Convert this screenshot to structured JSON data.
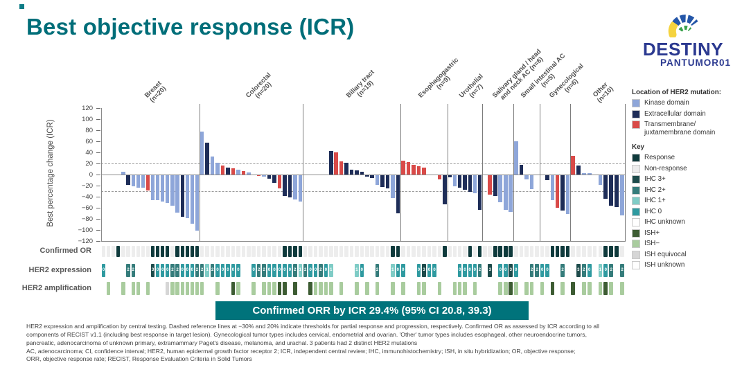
{
  "page": {
    "title": "Best objective response (ICR)",
    "logo": {
      "word": "DESTINY",
      "sub": "PANTUMOR01"
    },
    "banner_text": "Confirmed ORR by ICR 29.4% (95% CI 20.8, 39.3)",
    "row_labels": {
      "confirmed_or": "Confirmed OR",
      "her2_expression": "HER2 expression",
      "her2_amplification": "HER2 amplification"
    },
    "footnotes": [
      "HER2 expression and amplification by central testing. Dashed reference lines at −30% and 20% indicate thresholds for partial response and progression, respectively. Confirmed OR as assessed by ICR according to all",
      "components of RECIST v1.1 (including best response in target lesion). Gynecological tumor types includes cervical, endometrial and ovarian. 'Other' tumor types includes esophageal, other neuroendocrine tumors,",
      "pancreatic, adenocarcinoma of unknown primary, extramammary Paget's disease, melanoma, and urachal. 3 patients had 2 distinct HER2 mutations",
      "AC, adenocarcinoma; CI, confidence interval; HER2, human epidermal growth factor receptor 2; ICR, independent central review; IHC, immunohistochemistry; ISH, in situ hybridization; OR, objective response;",
      "ORR, objective response rate; RECIST, Response Evaluation Criteria in Solid Tumors"
    ]
  },
  "colors": {
    "title_teal": "#006e79",
    "banner_teal": "#00737b",
    "logo_navy": "#2b3990",
    "mutation": {
      "k": "#8ea6d9",
      "e": "#1e2d58",
      "t": "#d94a48"
    },
    "response": "#0f3a3c",
    "non_response": "#ededed",
    "ihc": {
      "3": "#1d4b4b",
      "2": "#357c7b",
      "1": "#7fccc6",
      "0": "#2f9aa0",
      "unknown": "#ffffff"
    },
    "ish": {
      "+": "#3d5c33",
      "-": "#a9cc9e",
      "eq": "#d6d6d6",
      "unknown": "#ffffff"
    }
  },
  "mutation_legend": {
    "title": "Location of HER2 mutation:",
    "items": [
      {
        "label": "Kinase domain",
        "key": "k"
      },
      {
        "label": "Extracellular domain",
        "key": "e"
      },
      {
        "label": "Transmembrane/\njuxtamembrane domain",
        "key": "t"
      }
    ]
  },
  "key_legend": {
    "title": "Key",
    "items": [
      {
        "label": "Response",
        "color": "#0f3a3c"
      },
      {
        "label": "Non-response",
        "color": "#ededed"
      },
      {
        "label": "IHC 3+",
        "color": "#1d4b4b"
      },
      {
        "label": "IHC 2+",
        "color": "#357c7b"
      },
      {
        "label": "IHC 1+",
        "color": "#7fccc6"
      },
      {
        "label": "IHC 0",
        "color": "#2f9aa0"
      },
      {
        "label": "IHC unknown",
        "color": "#ffffff"
      },
      {
        "label": "ISH+",
        "color": "#3d5c33"
      },
      {
        "label": "ISH−",
        "color": "#a9cc9e"
      },
      {
        "label": "ISH equivocal",
        "color": "#d6d6d6"
      },
      {
        "label": "ISH unknown",
        "color": "#ffffff"
      }
    ]
  },
  "chart_data": {
    "type": "bar",
    "subtype": "waterfall",
    "title": "Best objective response (ICR)",
    "ylabel": "Best percentage change (ICR)",
    "ylim": [
      -120,
      120
    ],
    "ytick_step": 20,
    "reference_lines": [
      20,
      -30
    ],
    "grid": "dashed-reference-only",
    "legend_position": "right",
    "sections": [
      {
        "label": "Breast",
        "n": 20,
        "patients": [
          {
            "v": 0,
            "ihc": "0"
          },
          {
            "v": 0,
            "ish": "-"
          },
          {
            "v": 0
          },
          {
            "v": 0,
            "or": true
          },
          {
            "v": 5,
            "m": "k",
            "ish": "-"
          },
          {
            "v": -18,
            "m": "e",
            "ihc": "2"
          },
          {
            "v": -20,
            "m": "k",
            "ihc": "2",
            "ish": "-"
          },
          {
            "v": -22,
            "m": "k",
            "ish": "-"
          },
          {
            "v": -23,
            "m": "k"
          },
          {
            "v": -28,
            "m": "t",
            "ish": "-"
          },
          {
            "v": -45,
            "m": "k",
            "or": true,
            "ihc": "3"
          },
          {
            "v": -45,
            "m": "k",
            "or": true,
            "ihc": "0"
          },
          {
            "v": -47,
            "m": "k",
            "or": true,
            "ihc": "0"
          },
          {
            "v": -50,
            "m": "k",
            "or": true,
            "ihc": "0",
            "ish": "eq"
          },
          {
            "v": -55,
            "m": "k",
            "ihc": "2",
            "ish": "-"
          },
          {
            "v": -68,
            "m": "k",
            "or": true,
            "ihc": "2",
            "ish": "-"
          },
          {
            "v": -75,
            "m": "e",
            "or": true,
            "ihc": "0",
            "ish": "-"
          },
          {
            "v": -78,
            "m": "k",
            "or": true,
            "ihc": "0",
            "ish": "-"
          },
          {
            "v": -88,
            "m": "k",
            "or": true,
            "ihc": "0",
            "ish": "-"
          },
          {
            "v": -100,
            "m": "k",
            "or": true,
            "ihc": "2",
            "ish": "-"
          }
        ]
      },
      {
        "label": "Colorectal",
        "n": 20,
        "patients": [
          {
            "v": 78,
            "m": "k",
            "ihc": "2",
            "ish": "-"
          },
          {
            "v": 58,
            "m": "e",
            "ihc": "1"
          },
          {
            "v": 33,
            "m": "k",
            "ihc": "2"
          },
          {
            "v": 21,
            "m": "k",
            "ihc": "0",
            "ish": "-"
          },
          {
            "v": 16,
            "m": "t",
            "ihc": "0"
          },
          {
            "v": 12,
            "m": "e",
            "ihc": "0"
          },
          {
            "v": 11,
            "m": "t",
            "ihc": "0",
            "ish": "+"
          },
          {
            "v": 9,
            "m": "k",
            "ihc": "0",
            "ish": "-"
          },
          {
            "v": 6,
            "m": "t"
          },
          {
            "v": 4,
            "m": "k"
          },
          {
            "v": 0,
            "ihc": "0",
            "ish": "-"
          },
          {
            "v": -1,
            "m": "t",
            "ihc": "2"
          },
          {
            "v": -2,
            "m": "k",
            "ihc": "2",
            "ish": "-"
          },
          {
            "v": -6,
            "m": "e",
            "ihc": "0",
            "ish": "-"
          },
          {
            "v": -14,
            "m": "e",
            "ihc": "0",
            "ish": "-"
          },
          {
            "v": -24,
            "m": "t",
            "ihc": "0",
            "ish": "+"
          },
          {
            "v": -38,
            "m": "e",
            "or": true,
            "ihc": "0",
            "ish": "+"
          },
          {
            "v": -40,
            "m": "e",
            "or": true,
            "ihc": "0"
          },
          {
            "v": -44,
            "m": "k",
            "or": true,
            "ihc": "2",
            "ish": "+"
          },
          {
            "v": -47,
            "m": "k",
            "or": true,
            "ihc": "1"
          }
        ]
      },
      {
        "label": "Biliary tract",
        "n": 19,
        "patients": [
          {
            "v": 0,
            "ihc": "2"
          },
          {
            "v": 0,
            "ihc": "0",
            "ish": "+"
          },
          {
            "v": 0,
            "ihc": "0",
            "ish": "-"
          },
          {
            "v": 0,
            "ihc": "2",
            "ish": "-"
          },
          {
            "v": 0,
            "ihc": "0",
            "ish": "-"
          },
          {
            "v": 42,
            "m": "e",
            "ihc": "1",
            "ish": "-"
          },
          {
            "v": 40,
            "m": "t"
          },
          {
            "v": 24,
            "m": "t",
            "ish": "-"
          },
          {
            "v": 21,
            "m": "e"
          },
          {
            "v": 9,
            "m": "e"
          },
          {
            "v": 8,
            "m": "e",
            "ihc": "1",
            "ish": "-"
          },
          {
            "v": 5,
            "m": "e",
            "ihc": "0"
          },
          {
            "v": -2,
            "m": "e",
            "ish": "-"
          },
          {
            "v": -5,
            "m": "e"
          },
          {
            "v": -17,
            "m": "k",
            "ihc": "2",
            "ish": "-"
          },
          {
            "v": -21,
            "m": "e"
          },
          {
            "v": -24,
            "m": "e"
          },
          {
            "v": -41,
            "m": "k",
            "or": true,
            "ihc": "1",
            "ish": "-"
          },
          {
            "v": -69,
            "m": "e",
            "or": true,
            "ihc": "0"
          }
        ]
      },
      {
        "label": "Esophagogastric",
        "n": 9,
        "patients": [
          {
            "v": 25,
            "m": "t",
            "ihc": "0",
            "ish": "-"
          },
          {
            "v": 23,
            "m": "t"
          },
          {
            "v": 18,
            "m": "t"
          },
          {
            "v": 15,
            "m": "t",
            "ihc": "0",
            "ish": "-"
          },
          {
            "v": 12,
            "m": "t",
            "ihc": "3",
            "ish": "-"
          },
          {
            "v": 0,
            "ihc": "0"
          },
          {
            "v": 0,
            "ihc": "0"
          },
          {
            "v": -7,
            "m": "t",
            "ish": "-"
          },
          {
            "v": -53,
            "m": "e",
            "or": true
          }
        ]
      },
      {
        "label": "Urothelial",
        "n": 7,
        "patients": [
          {
            "v": -4,
            "m": "e"
          },
          {
            "v": -20,
            "m": "k",
            "ish": "-"
          },
          {
            "v": -23,
            "m": "e",
            "ihc": "0",
            "ish": "-"
          },
          {
            "v": -26,
            "m": "e",
            "ihc": "0",
            "ish": "-"
          },
          {
            "v": -30,
            "m": "e",
            "or": true,
            "ihc": "0"
          },
          {
            "v": -33,
            "m": "k",
            "ihc": "0",
            "ish": "-"
          },
          {
            "v": -63,
            "m": "e",
            "or": true,
            "ihc": "2"
          }
        ]
      },
      {
        "label": "Salivary gland / head\nand neck AC (n=6)",
        "n": 6,
        "hide_n": true,
        "patients": [
          {
            "v": 0
          },
          {
            "v": -35,
            "m": "t",
            "ihc": "3"
          },
          {
            "v": -38,
            "m": "e",
            "or": true
          },
          {
            "v": -49,
            "m": "k",
            "or": true,
            "ihc": "0",
            "ish": "-"
          },
          {
            "v": -63,
            "m": "k",
            "or": true,
            "ihc": "0",
            "ish": "-"
          },
          {
            "v": -66,
            "m": "k",
            "or": true,
            "ihc": "3",
            "ish": "+"
          }
        ]
      },
      {
        "label": "Small intestinal AC",
        "n": 5,
        "patients": [
          {
            "v": 60,
            "m": "k",
            "ihc": "0",
            "ish": "-"
          },
          {
            "v": 17,
            "m": "e"
          },
          {
            "v": -7,
            "m": "k",
            "ish": "-"
          },
          {
            "v": -25,
            "m": "k",
            "ihc": "2",
            "ish": "-"
          },
          {
            "v": 0,
            "ihc": "2"
          }
        ]
      },
      {
        "label": "Gynecological",
        "n": 6,
        "patients": [
          {
            "v": 0,
            "ihc": "0",
            "ish": "-"
          },
          {
            "v": -9,
            "m": "e",
            "ihc": "0"
          },
          {
            "v": -45,
            "m": "k",
            "or": true,
            "ish": "+"
          },
          {
            "v": -59,
            "m": "t",
            "or": true
          },
          {
            "v": -64,
            "m": "e",
            "or": true,
            "ihc": "2",
            "ish": "-"
          },
          {
            "v": -70,
            "m": "k",
            "or": true
          }
        ]
      },
      {
        "label": "Other",
        "n": 10,
        "patients": [
          {
            "v": 34,
            "m": "t",
            "ish": "+"
          },
          {
            "v": 16,
            "m": "e",
            "ihc": "3"
          },
          {
            "v": 3,
            "m": "k",
            "ihc": "2",
            "ish": "-"
          },
          {
            "v": 2,
            "m": "k",
            "ihc": "0",
            "ish": "-"
          },
          {
            "v": 0
          },
          {
            "v": -18,
            "m": "k",
            "ihc": "1",
            "ish": "-"
          },
          {
            "v": -43,
            "m": "e",
            "or": true,
            "ihc": "0",
            "ish": "+"
          },
          {
            "v": -55,
            "m": "e",
            "or": true,
            "ihc": "2",
            "ish": "-"
          },
          {
            "v": -57,
            "m": "e",
            "or": true
          },
          {
            "v": -73,
            "m": "k",
            "ihc": "2",
            "ish": "-"
          }
        ]
      }
    ]
  }
}
